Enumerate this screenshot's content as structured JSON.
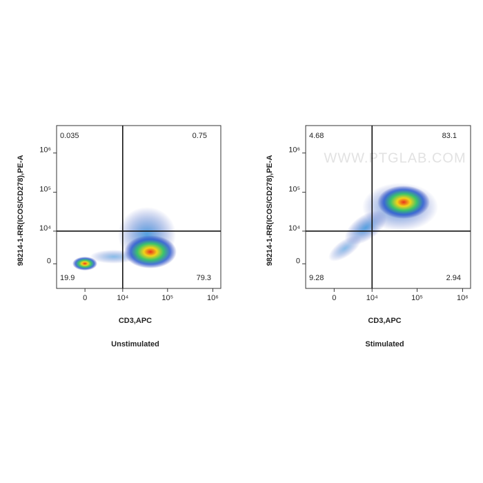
{
  "chart_data": [
    {
      "type": "quadrant-scatter",
      "title": "Unstimulated",
      "xlabel": "CD3,APC",
      "ylabel": "98214-1-RR(ICOS/CD278),PE-A",
      "xscale": "biexponential",
      "yscale": "biexponential",
      "xlim": [
        -6000,
        1500000
      ],
      "ylim": [
        -6000,
        5000000
      ],
      "xticks": [
        0,
        {
          "value": 10000,
          "label": "10⁴"
        },
        {
          "value": 100000,
          "label": "10⁵"
        },
        {
          "value": 1000000,
          "label": "10⁶"
        }
      ],
      "yticks": [
        0,
        {
          "value": 10000,
          "label": "10⁴"
        },
        {
          "value": 100000,
          "label": "10⁵"
        },
        {
          "value": 1000000,
          "label": "10⁶"
        }
      ],
      "gate": {
        "x": 10000,
        "y": 10000
      },
      "quadrants": {
        "upper-left": 0.035,
        "upper-right": 0.75,
        "lower-left": 19.9,
        "lower-right": 79.3
      }
    },
    {
      "type": "quadrant-scatter",
      "title": "Stimulated",
      "xlabel": "CD3,APC",
      "ylabel": "98214-1-RR(ICOS/CD278),PE-A",
      "xscale": "biexponential",
      "yscale": "biexponential",
      "xlim": [
        -6000,
        1500000
      ],
      "ylim": [
        -6000,
        5000000
      ],
      "xticks": [
        0,
        {
          "value": 10000,
          "label": "10⁴"
        },
        {
          "value": 100000,
          "label": "10⁵"
        },
        {
          "value": 1000000,
          "label": "10⁶"
        }
      ],
      "yticks": [
        0,
        {
          "value": 10000,
          "label": "10⁴"
        },
        {
          "value": 100000,
          "label": "10⁵"
        },
        {
          "value": 1000000,
          "label": "10⁶"
        }
      ],
      "gate": {
        "x": 10000,
        "y": 10000
      },
      "quadrants": {
        "upper-left": 4.68,
        "upper-right": 83.1,
        "lower-left": 9.28,
        "lower-right": 2.94
      },
      "watermark": "WWW.PTGLAB.COM"
    }
  ]
}
